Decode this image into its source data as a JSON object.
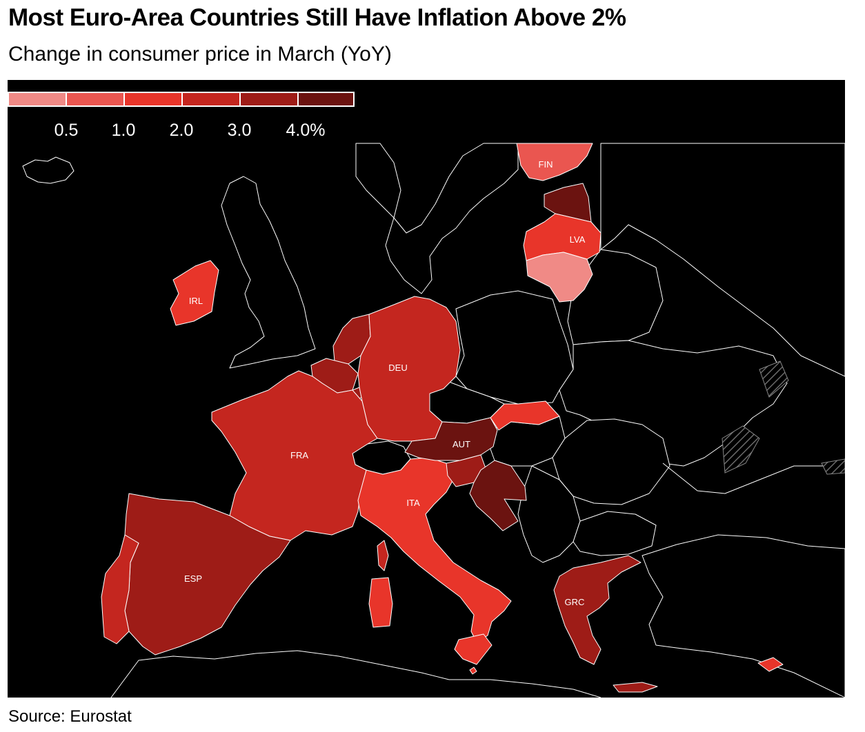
{
  "header": {
    "title": "Most Euro-Area Countries Still Have Inflation Above 2%",
    "subtitle": "Change in consumer price in March (YoY)"
  },
  "legend": {
    "swatches": [
      "#f08a86",
      "#ea5650",
      "#e8352a",
      "#c4261f",
      "#9e1c17",
      "#6b1310"
    ],
    "ticks": [
      "0.5",
      "1.0",
      "2.0",
      "3.0",
      "4.0%"
    ],
    "bins": [
      "< 0.5",
      "0.5–1.0",
      "1.0–2.0",
      "2.0–3.0",
      "3.0–4.0",
      "> 4.0"
    ]
  },
  "colors": {
    "background": "#000000",
    "border": "#ffffff",
    "non_euro": "#000000",
    "hatch": "#666666"
  },
  "countries": [
    {
      "code": "FIN",
      "bin": 1,
      "label": "FIN"
    },
    {
      "code": "EST",
      "bin": 5,
      "label": ""
    },
    {
      "code": "LVA",
      "bin": 2,
      "label": "LVA"
    },
    {
      "code": "LTU",
      "bin": 0,
      "label": ""
    },
    {
      "code": "IRL",
      "bin": 2,
      "label": "IRL"
    },
    {
      "code": "NLD",
      "bin": 4,
      "label": ""
    },
    {
      "code": "BEL",
      "bin": 4,
      "label": ""
    },
    {
      "code": "LUX",
      "bin": 4,
      "label": ""
    },
    {
      "code": "DEU",
      "bin": 3,
      "label": "DEU"
    },
    {
      "code": "FRA",
      "bin": 3,
      "label": "FRA"
    },
    {
      "code": "ESP",
      "bin": 4,
      "label": "ESP"
    },
    {
      "code": "PRT",
      "bin": 3,
      "label": ""
    },
    {
      "code": "ITA",
      "bin": 2,
      "label": "ITA"
    },
    {
      "code": "AUT",
      "bin": 5,
      "label": "AUT"
    },
    {
      "code": "SVK",
      "bin": 2,
      "label": ""
    },
    {
      "code": "SVN",
      "bin": 4,
      "label": ""
    },
    {
      "code": "HRV",
      "bin": 5,
      "label": ""
    },
    {
      "code": "GRC",
      "bin": 4,
      "label": "GRC"
    },
    {
      "code": "MLT",
      "bin": 2,
      "label": ""
    },
    {
      "code": "CYP",
      "bin": 2,
      "label": ""
    }
  ],
  "footer": {
    "source": "Source: Eurostat"
  }
}
